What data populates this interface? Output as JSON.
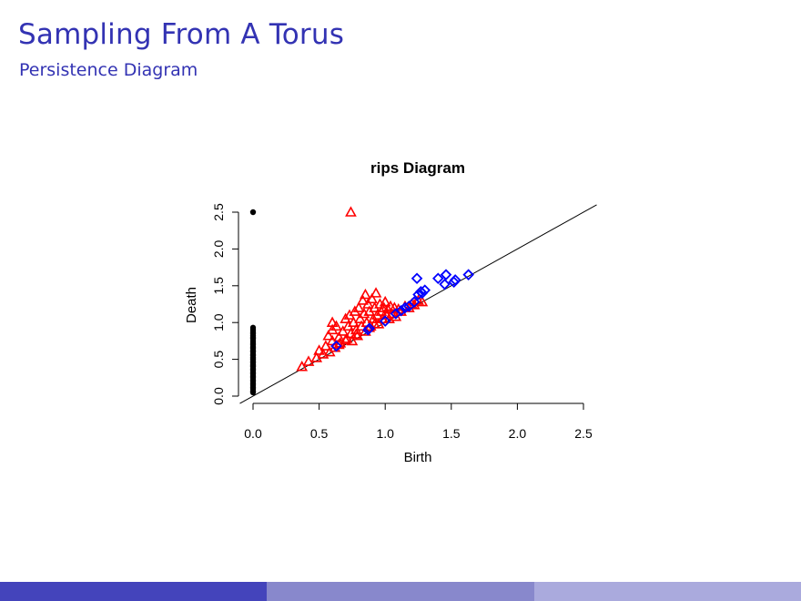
{
  "slide": {
    "title": "Sampling From A Torus",
    "subtitle": "Persistence Diagram"
  },
  "colors": {
    "title": "#3333b3",
    "footer": [
      "#4444bb",
      "#8888cc",
      "#aaaadd"
    ],
    "dim0": "#000000",
    "dim1": "#ff0000",
    "dim2": "#0000ff"
  },
  "chart_data": {
    "type": "scatter",
    "title": "rips Diagram",
    "xlabel": "Birth",
    "ylabel": "Death",
    "xlim": [
      0,
      2.5
    ],
    "ylim": [
      0,
      2.5
    ],
    "xticks": [
      "0.0",
      "0.5",
      "1.0",
      "1.5",
      "2.0",
      "2.5"
    ],
    "yticks": [
      "0.0",
      "0.5",
      "1.0",
      "1.5",
      "2.0",
      "2.5"
    ],
    "diagonal": true,
    "series": [
      {
        "marker": "circle",
        "color": "#000000",
        "points": [
          [
            0,
            2.5
          ],
          [
            0,
            0.93
          ],
          [
            0,
            0.9
          ],
          [
            0,
            0.87
          ],
          [
            0,
            0.85
          ],
          [
            0,
            0.82
          ],
          [
            0,
            0.8
          ],
          [
            0,
            0.78
          ],
          [
            0,
            0.75
          ],
          [
            0,
            0.72
          ],
          [
            0,
            0.7
          ],
          [
            0,
            0.67
          ],
          [
            0,
            0.65
          ],
          [
            0,
            0.62
          ],
          [
            0,
            0.6
          ],
          [
            0,
            0.57
          ],
          [
            0,
            0.55
          ],
          [
            0,
            0.52
          ],
          [
            0,
            0.5
          ],
          [
            0,
            0.47
          ],
          [
            0,
            0.45
          ],
          [
            0,
            0.42
          ],
          [
            0,
            0.4
          ],
          [
            0,
            0.37
          ],
          [
            0,
            0.35
          ],
          [
            0,
            0.32
          ],
          [
            0,
            0.3
          ],
          [
            0,
            0.27
          ],
          [
            0,
            0.25
          ],
          [
            0,
            0.22
          ],
          [
            0,
            0.2
          ],
          [
            0,
            0.17
          ],
          [
            0,
            0.15
          ],
          [
            0,
            0.12
          ],
          [
            0,
            0.1
          ],
          [
            0,
            0.07
          ],
          [
            0,
            0.05
          ]
        ]
      },
      {
        "marker": "triangle",
        "color": "#ff0000",
        "points": [
          [
            0.74,
            2.5
          ],
          [
            0.37,
            0.4
          ],
          [
            0.42,
            0.47
          ],
          [
            0.48,
            0.52
          ],
          [
            0.5,
            0.62
          ],
          [
            0.53,
            0.57
          ],
          [
            0.55,
            0.68
          ],
          [
            0.58,
            0.6
          ],
          [
            0.6,
            0.75
          ],
          [
            0.62,
            0.66
          ],
          [
            0.57,
            0.82
          ],
          [
            0.6,
            0.9
          ],
          [
            0.6,
            1.0
          ],
          [
            0.63,
            0.95
          ],
          [
            0.65,
            0.8
          ],
          [
            0.66,
            0.72
          ],
          [
            0.68,
            0.88
          ],
          [
            0.7,
            1.05
          ],
          [
            0.71,
            0.78
          ],
          [
            0.72,
            0.95
          ],
          [
            0.73,
            1.1
          ],
          [
            0.74,
            0.85
          ],
          [
            0.75,
            0.75
          ],
          [
            0.76,
            1.0
          ],
          [
            0.77,
            1.15
          ],
          [
            0.78,
            0.9
          ],
          [
            0.79,
            0.82
          ],
          [
            0.8,
            1.2
          ],
          [
            0.81,
            1.05
          ],
          [
            0.82,
            0.95
          ],
          [
            0.83,
            1.3
          ],
          [
            0.84,
            1.12
          ],
          [
            0.85,
            1.38
          ],
          [
            0.85,
            0.88
          ],
          [
            0.86,
            1.0
          ],
          [
            0.87,
            1.25
          ],
          [
            0.88,
            1.15
          ],
          [
            0.89,
            0.95
          ],
          [
            0.9,
            1.32
          ],
          [
            0.91,
            1.05
          ],
          [
            0.92,
            1.2
          ],
          [
            0.93,
            1.4
          ],
          [
            0.94,
            1.1
          ],
          [
            0.95,
            0.98
          ],
          [
            0.96,
            1.25
          ],
          [
            0.97,
            1.15
          ],
          [
            0.98,
            1.05
          ],
          [
            0.99,
            1.2
          ],
          [
            1.0,
            1.28
          ],
          [
            1.01,
            1.1
          ],
          [
            1.02,
            1.18
          ],
          [
            1.03,
            1.05
          ],
          [
            1.04,
            1.22
          ],
          [
            1.05,
            1.12
          ],
          [
            1.07,
            1.2
          ],
          [
            1.08,
            1.08
          ],
          [
            1.1,
            1.18
          ],
          [
            1.12,
            1.15
          ],
          [
            1.15,
            1.22
          ],
          [
            1.18,
            1.2
          ],
          [
            1.2,
            1.25
          ],
          [
            1.22,
            1.24
          ],
          [
            1.25,
            1.3
          ],
          [
            1.28,
            1.28
          ],
          [
            0.65,
            0.7
          ],
          [
            0.7,
            0.76
          ],
          [
            0.78,
            0.84
          ],
          [
            0.88,
            0.93
          ],
          [
            0.92,
            0.98
          ]
        ]
      },
      {
        "marker": "diamond",
        "color": "#0000ff",
        "points": [
          [
            0.63,
            0.68
          ],
          [
            0.87,
            0.9
          ],
          [
            0.88,
            0.92
          ],
          [
            1.0,
            1.02
          ],
          [
            1.08,
            1.12
          ],
          [
            1.12,
            1.16
          ],
          [
            1.15,
            1.2
          ],
          [
            1.18,
            1.22
          ],
          [
            1.22,
            1.28
          ],
          [
            1.24,
            1.6
          ],
          [
            1.25,
            1.38
          ],
          [
            1.27,
            1.42
          ],
          [
            1.28,
            1.4
          ],
          [
            1.3,
            1.44
          ],
          [
            1.4,
            1.6
          ],
          [
            1.45,
            1.52
          ],
          [
            1.46,
            1.65
          ],
          [
            1.52,
            1.55
          ],
          [
            1.53,
            1.58
          ],
          [
            1.63,
            1.65
          ]
        ]
      }
    ]
  }
}
